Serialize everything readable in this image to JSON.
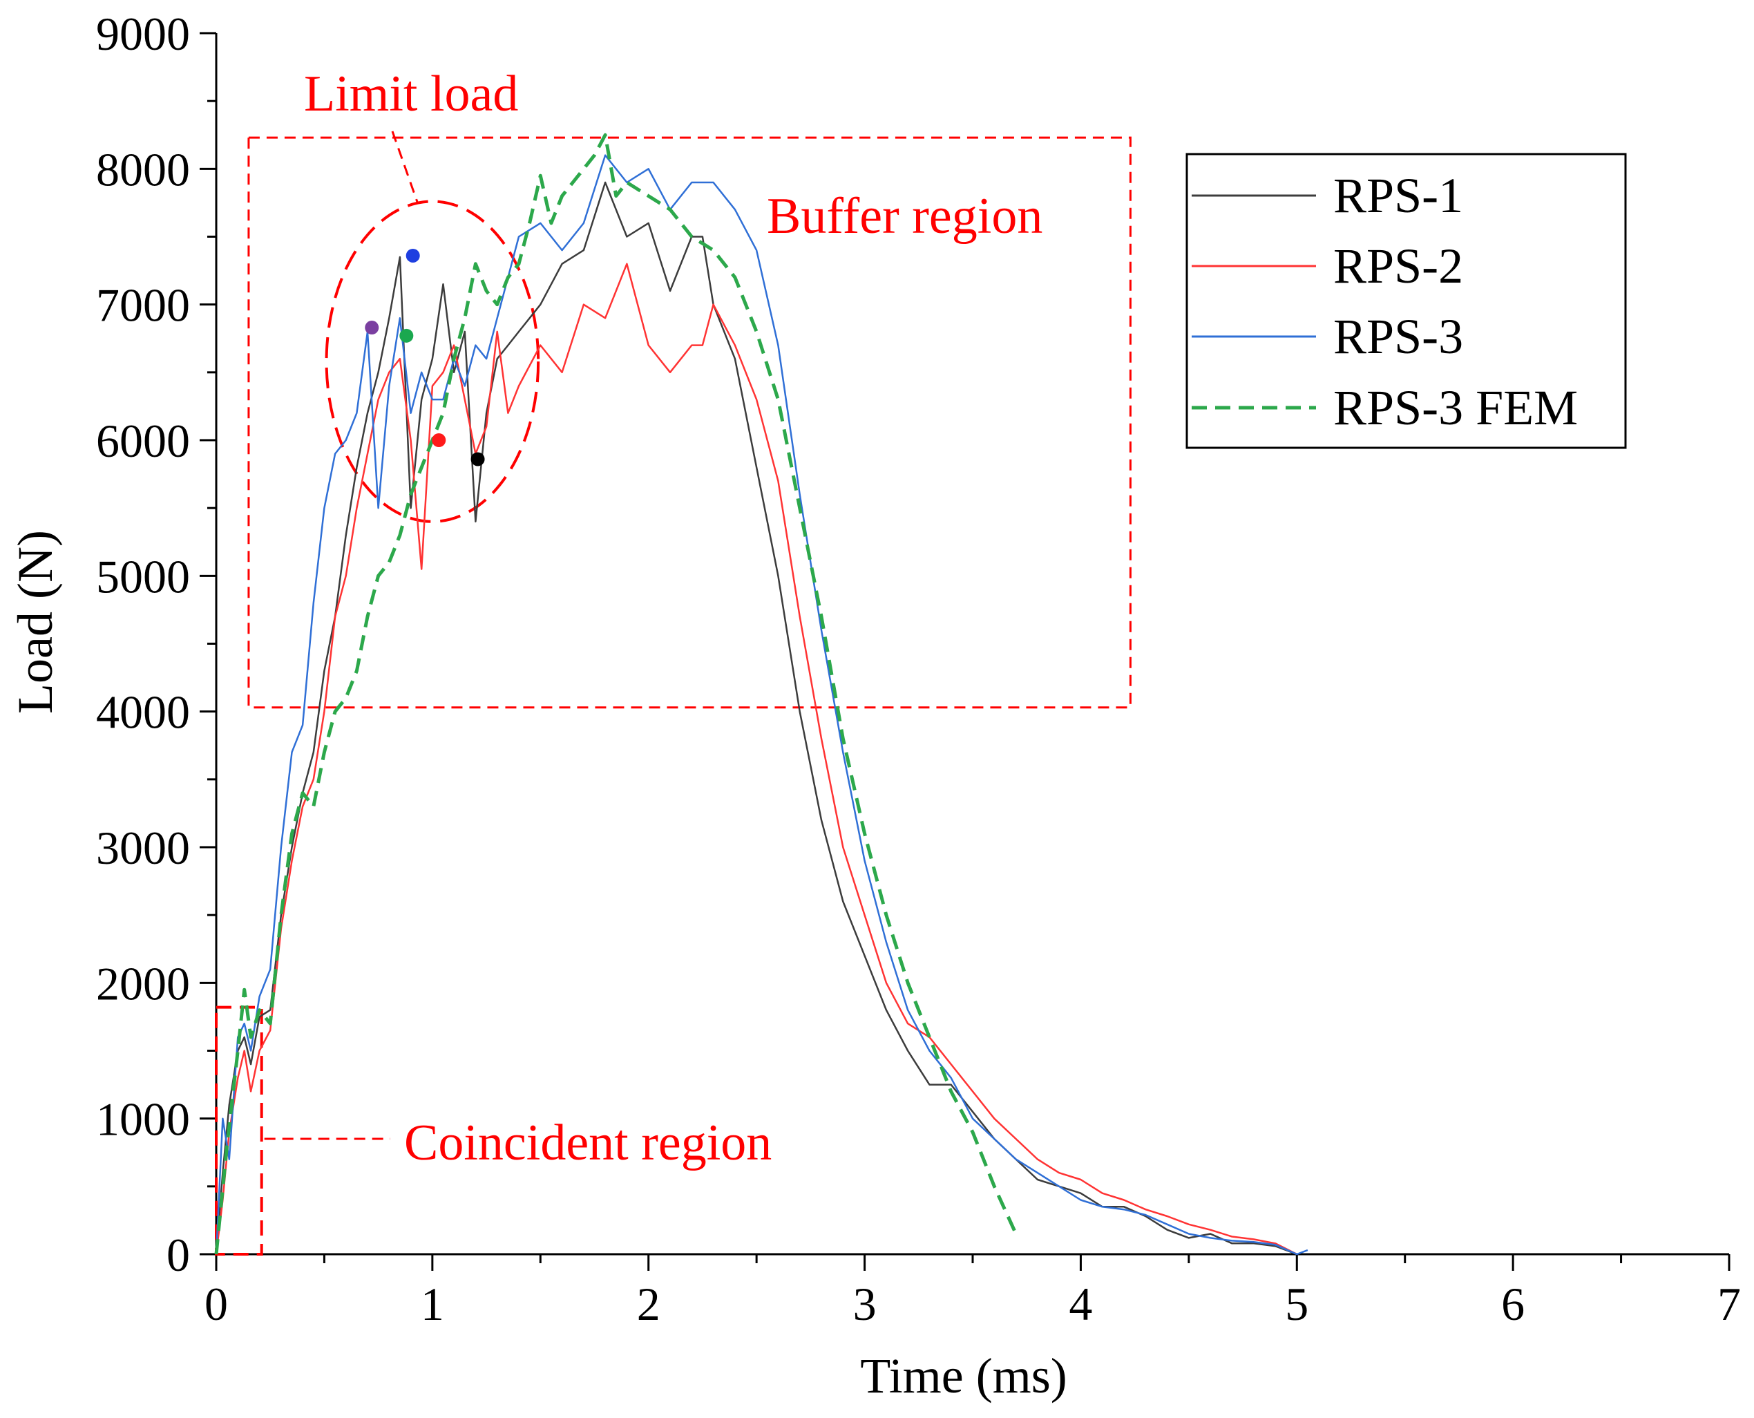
{
  "chart_data": {
    "type": "line",
    "xlabel": "Time (ms)",
    "ylabel": "Load (N)",
    "xlim": [
      0,
      7
    ],
    "ylim": [
      0,
      9000
    ],
    "xticks": [
      0,
      1,
      2,
      3,
      4,
      5,
      6,
      7
    ],
    "yticks": [
      0,
      1000,
      2000,
      3000,
      4000,
      5000,
      6000,
      7000,
      8000,
      9000
    ],
    "grid": false,
    "legend_position": "top-right",
    "series": [
      {
        "name": "RPS-1",
        "color": "#3c3c3c",
        "dash": false,
        "x": [
          0,
          0.03,
          0.06,
          0.1,
          0.13,
          0.16,
          0.2,
          0.25,
          0.3,
          0.35,
          0.4,
          0.45,
          0.5,
          0.55,
          0.6,
          0.65,
          0.7,
          0.75,
          0.8,
          0.85,
          0.9,
          0.95,
          1.0,
          1.05,
          1.1,
          1.15,
          1.2,
          1.25,
          1.3,
          1.35,
          1.4,
          1.5,
          1.6,
          1.7,
          1.8,
          1.9,
          2.0,
          2.1,
          2.2,
          2.25,
          2.3,
          2.4,
          2.5,
          2.6,
          2.7,
          2.8,
          2.9,
          3.0,
          3.1,
          3.2,
          3.3,
          3.4,
          3.5,
          3.6,
          3.7,
          3.8,
          3.9,
          4.0,
          4.1,
          4.2,
          4.3,
          4.4,
          4.5,
          4.6,
          4.7,
          4.8,
          4.9,
          5.0
        ],
        "y": [
          0,
          600,
          1100,
          1500,
          1600,
          1400,
          1750,
          1800,
          2500,
          3000,
          3400,
          3700,
          4300,
          4700,
          5300,
          5800,
          6200,
          6500,
          6900,
          7350,
          5500,
          6300,
          6600,
          7150,
          6500,
          6800,
          5400,
          6200,
          6600,
          6700,
          6800,
          7000,
          7300,
          7400,
          7900,
          7500,
          7600,
          7100,
          7500,
          7500,
          7000,
          6600,
          5800,
          5000,
          4000,
          3200,
          2600,
          2200,
          1800,
          1500,
          1250,
          1250,
          1050,
          850,
          700,
          550,
          500,
          450,
          350,
          350,
          280,
          180,
          120,
          150,
          80,
          80,
          60,
          0
        ]
      },
      {
        "name": "RPS-2",
        "color": "#ff3333",
        "dash": false,
        "x": [
          0,
          0.03,
          0.06,
          0.1,
          0.13,
          0.16,
          0.2,
          0.25,
          0.3,
          0.35,
          0.4,
          0.45,
          0.5,
          0.55,
          0.6,
          0.65,
          0.7,
          0.75,
          0.8,
          0.85,
          0.9,
          0.95,
          1.0,
          1.05,
          1.1,
          1.15,
          1.2,
          1.25,
          1.3,
          1.35,
          1.4,
          1.5,
          1.6,
          1.7,
          1.8,
          1.9,
          2.0,
          2.1,
          2.2,
          2.25,
          2.3,
          2.4,
          2.5,
          2.6,
          2.7,
          2.8,
          2.9,
          3.0,
          3.1,
          3.2,
          3.3,
          3.4,
          3.5,
          3.6,
          3.7,
          3.8,
          3.9,
          4.0,
          4.1,
          4.2,
          4.3,
          4.4,
          4.5,
          4.6,
          4.7,
          4.8,
          4.9,
          5.0
        ],
        "y": [
          0,
          400,
          900,
          1300,
          1500,
          1200,
          1500,
          1650,
          2400,
          2900,
          3300,
          3500,
          4000,
          4700,
          5000,
          5500,
          5900,
          6300,
          6500,
          6600,
          6000,
          5050,
          6400,
          6500,
          6700,
          6300,
          5900,
          6100,
          6800,
          6200,
          6400,
          6700,
          6500,
          7000,
          6900,
          7300,
          6700,
          6500,
          6700,
          6700,
          7000,
          6700,
          6300,
          5700,
          4700,
          3800,
          3000,
          2500,
          2000,
          1700,
          1600,
          1400,
          1200,
          1000,
          850,
          700,
          600,
          550,
          450,
          400,
          330,
          280,
          220,
          180,
          130,
          110,
          80,
          0
        ]
      },
      {
        "name": "RPS-3",
        "color": "#2f6fd6",
        "dash": false,
        "x": [
          0,
          0.03,
          0.06,
          0.1,
          0.13,
          0.16,
          0.2,
          0.25,
          0.3,
          0.35,
          0.4,
          0.45,
          0.5,
          0.55,
          0.6,
          0.65,
          0.7,
          0.75,
          0.8,
          0.85,
          0.9,
          0.95,
          1.0,
          1.05,
          1.1,
          1.15,
          1.2,
          1.25,
          1.3,
          1.35,
          1.4,
          1.5,
          1.6,
          1.7,
          1.8,
          1.9,
          2.0,
          2.1,
          2.2,
          2.25,
          2.3,
          2.4,
          2.5,
          2.6,
          2.7,
          2.8,
          2.9,
          3.0,
          3.1,
          3.2,
          3.3,
          3.4,
          3.5,
          3.6,
          3.7,
          3.8,
          3.9,
          4.0,
          4.1,
          4.2,
          4.3,
          4.4,
          4.5,
          4.6,
          4.7,
          4.8,
          4.9,
          5.0,
          5.05
        ],
        "y": [
          0,
          1000,
          700,
          1600,
          1700,
          1500,
          1900,
          2100,
          3000,
          3700,
          3900,
          4800,
          5500,
          5900,
          6000,
          6200,
          6800,
          5500,
          6400,
          6900,
          6200,
          6500,
          6300,
          6300,
          6600,
          6400,
          6700,
          6600,
          6900,
          7200,
          7500,
          7600,
          7400,
          7600,
          8100,
          7900,
          8000,
          7700,
          7900,
          7900,
          7900,
          7700,
          7400,
          6700,
          5600,
          4600,
          3700,
          2900,
          2300,
          1800,
          1500,
          1300,
          1000,
          850,
          700,
          600,
          500,
          400,
          350,
          330,
          290,
          220,
          150,
          120,
          100,
          90,
          70,
          0,
          30
        ]
      },
      {
        "name": "RPS-3 FEM",
        "color": "#2ca84b",
        "dash": true,
        "x": [
          0,
          0.05,
          0.1,
          0.13,
          0.16,
          0.2,
          0.25,
          0.3,
          0.35,
          0.4,
          0.45,
          0.5,
          0.55,
          0.6,
          0.65,
          0.7,
          0.75,
          0.8,
          0.85,
          0.9,
          0.95,
          1.0,
          1.05,
          1.1,
          1.15,
          1.2,
          1.25,
          1.3,
          1.35,
          1.4,
          1.45,
          1.5,
          1.55,
          1.6,
          1.65,
          1.7,
          1.75,
          1.8,
          1.85,
          1.9,
          2.0,
          2.1,
          2.2,
          2.3,
          2.4,
          2.5,
          2.6,
          2.7,
          2.8,
          2.9,
          3.0,
          3.1,
          3.2,
          3.3,
          3.4,
          3.5,
          3.6,
          3.7
        ],
        "y": [
          0,
          800,
          1500,
          1950,
          1600,
          1800,
          1700,
          2500,
          3100,
          3400,
          3300,
          3700,
          4000,
          4100,
          4300,
          4700,
          5000,
          5100,
          5300,
          5600,
          5800,
          6000,
          6200,
          6600,
          6900,
          7300,
          7100,
          7000,
          7200,
          7300,
          7600,
          7950,
          7600,
          7800,
          7900,
          8000,
          8100,
          8250,
          7800,
          7900,
          7800,
          7700,
          7500,
          7400,
          7200,
          6800,
          6300,
          5500,
          4700,
          3800,
          3100,
          2500,
          2000,
          1600,
          1200,
          900,
          500,
          150
        ]
      }
    ],
    "markers": [
      {
        "x": 0.72,
        "y": 6830,
        "color": "#7a3fa0"
      },
      {
        "x": 0.91,
        "y": 7360,
        "color": "#1f3fe0"
      },
      {
        "x": 0.88,
        "y": 6770,
        "color": "#1aa84f"
      },
      {
        "x": 1.03,
        "y": 6000,
        "color": "#ff1a1a"
      },
      {
        "x": 1.21,
        "y": 5860,
        "color": "#000000"
      }
    ],
    "annotations": {
      "limit_load": "Limit load",
      "buffer_region": "Buffer region",
      "coincident_region": "Coincident region",
      "color": "#ff0000"
    },
    "regions": {
      "buffer_box": {
        "x0": 0.15,
        "x1": 4.23,
        "y0": 4030,
        "y1": 8230
      },
      "coincident_box": {
        "x0": 0.0,
        "x1": 0.21,
        "y0": 0,
        "y1": 1820
      },
      "limit_ellipse": {
        "cx": 1.0,
        "cy": 6580,
        "rx": 0.49,
        "ry": 1180
      }
    }
  }
}
